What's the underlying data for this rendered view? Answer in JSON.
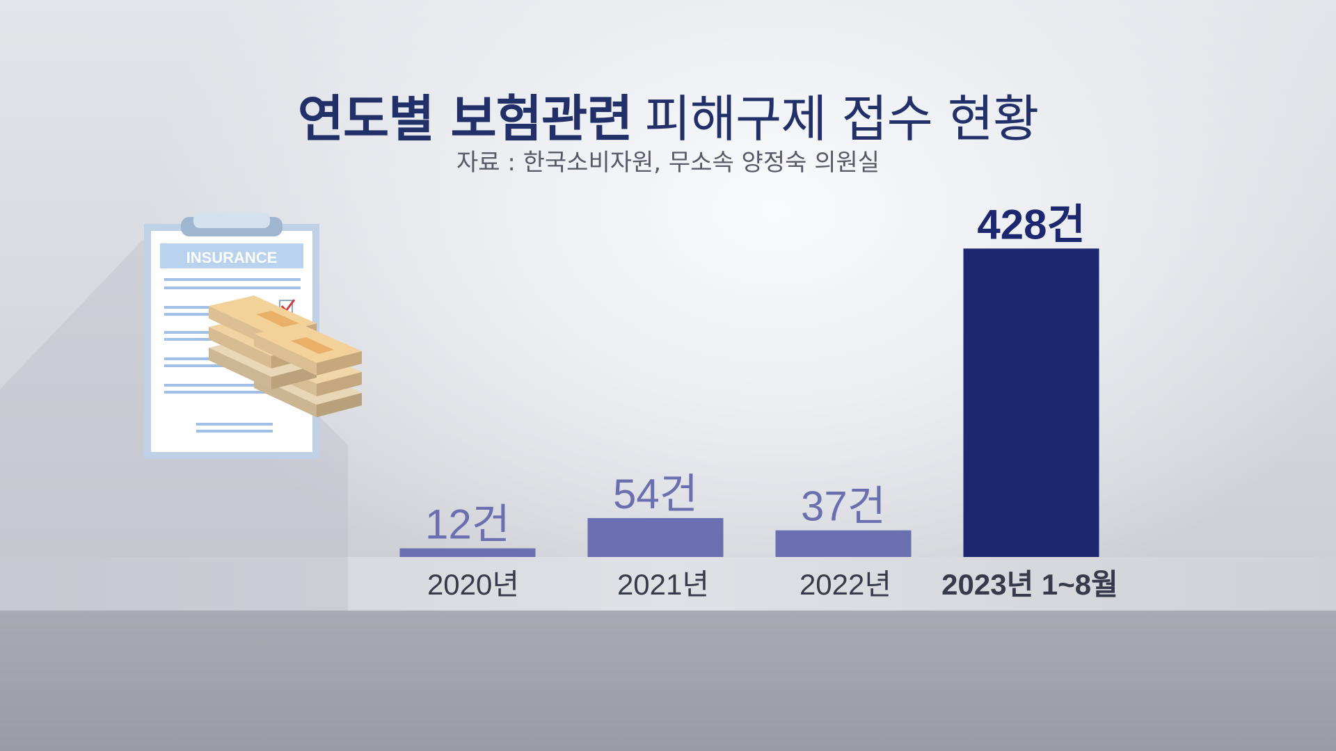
{
  "title": {
    "bold": "연도별 보험관련",
    "regular": "피해구제 접수 현황"
  },
  "source": "자료 : 한국소비자원, 무소속 양정숙 의원실",
  "illustration": {
    "clipboard_label": "INSURANCE",
    "icons": [
      "clipboard-icon",
      "money-stack-icon",
      "checkmark-icon"
    ]
  },
  "colors": {
    "past_bars": "#6a6fb0",
    "highlight_bar": "#1b2870",
    "title": "#22306a"
  },
  "chart_data": {
    "type": "bar",
    "title": "연도별 보험관련 피해구제 접수 현황",
    "categories": [
      "2020년",
      "2021년",
      "2022년",
      "2023년 1~8월"
    ],
    "values": [
      12,
      54,
      37,
      428
    ],
    "value_labels": [
      "12건",
      "54건",
      "37건",
      "428건"
    ],
    "highlight_index": 3,
    "ylim": [
      0,
      440
    ],
    "grid": false,
    "legend": "none"
  }
}
